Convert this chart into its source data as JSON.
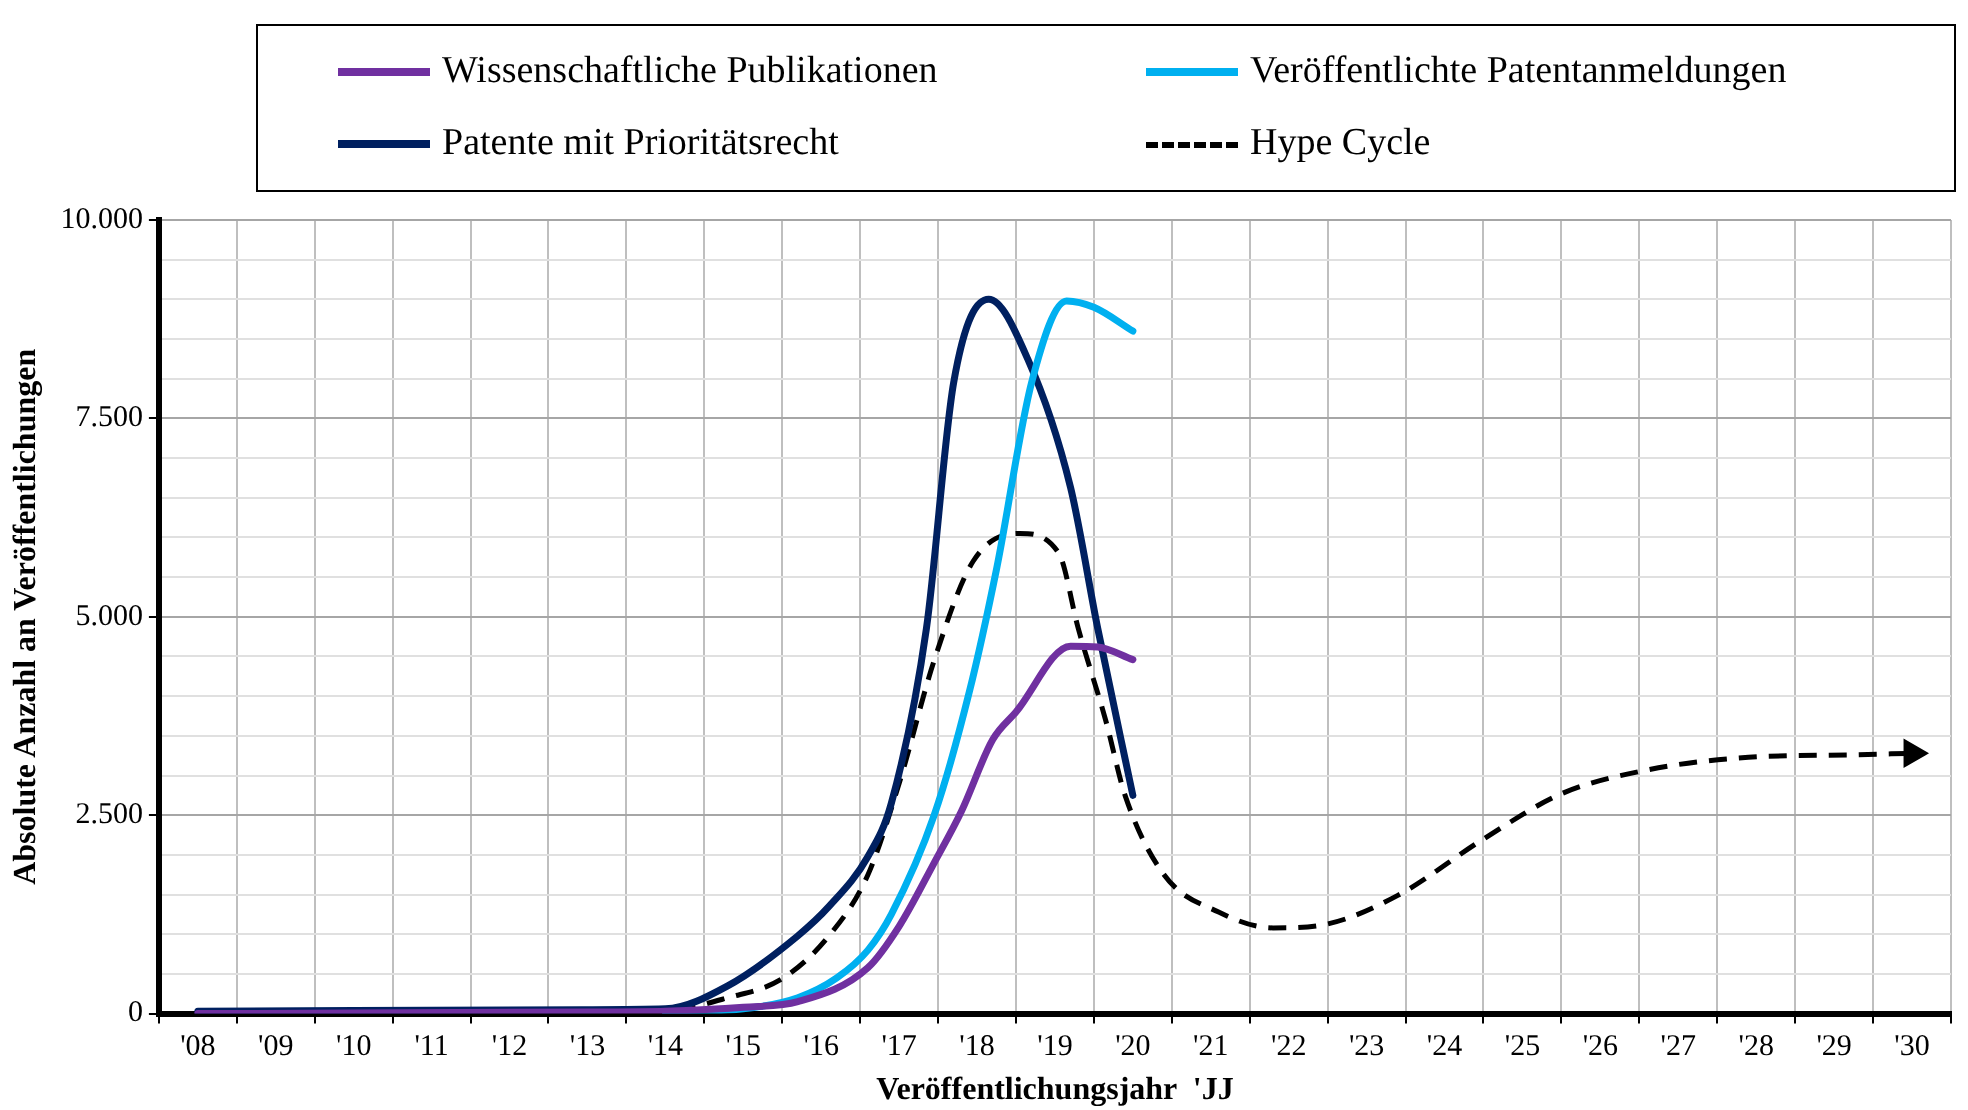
{
  "chart_data": {
    "type": "line",
    "xlabel": "Veröffentlichungsjahr  'JJ",
    "ylabel": "Absolute Anzahl an Veröffentlichungen",
    "xlim": [
      2007.5,
      2030.5
    ],
    "xticks": [
      {
        "value": 2007.5,
        "label": null
      },
      {
        "value": 2008,
        "label": "'08"
      },
      {
        "value": 2008.5,
        "label": null
      },
      {
        "value": 2009,
        "label": "'09"
      },
      {
        "value": 2009.5,
        "label": null
      },
      {
        "value": 2010,
        "label": "'10"
      },
      {
        "value": 2010.5,
        "label": null
      },
      {
        "value": 2011,
        "label": "'11"
      },
      {
        "value": 2011.5,
        "label": null
      },
      {
        "value": 2012,
        "label": "'12"
      },
      {
        "value": 2012.5,
        "label": null
      },
      {
        "value": 2013,
        "label": "'13"
      },
      {
        "value": 2013.5,
        "label": null
      },
      {
        "value": 2014,
        "label": "'14"
      },
      {
        "value": 2014.5,
        "label": null
      },
      {
        "value": 2015,
        "label": "'15"
      },
      {
        "value": 2015.5,
        "label": null
      },
      {
        "value": 2016,
        "label": "'16"
      },
      {
        "value": 2016.5,
        "label": null
      },
      {
        "value": 2017,
        "label": "'17"
      },
      {
        "value": 2017.5,
        "label": null
      },
      {
        "value": 2018,
        "label": "'18"
      },
      {
        "value": 2018.5,
        "label": null
      },
      {
        "value": 2019,
        "label": "'19"
      },
      {
        "value": 2019.5,
        "label": null
      },
      {
        "value": 2020,
        "label": "'20"
      },
      {
        "value": 2020.5,
        "label": null
      },
      {
        "value": 2021,
        "label": "'21"
      },
      {
        "value": 2021.5,
        "label": null
      },
      {
        "value": 2022,
        "label": "'22"
      },
      {
        "value": 2022.5,
        "label": null
      },
      {
        "value": 2023,
        "label": "'23"
      },
      {
        "value": 2023.5,
        "label": null
      },
      {
        "value": 2024,
        "label": "'24"
      },
      {
        "value": 2024.5,
        "label": null
      },
      {
        "value": 2025,
        "label": "'25"
      },
      {
        "value": 2025.5,
        "label": null
      },
      {
        "value": 2026,
        "label": "'26"
      },
      {
        "value": 2026.5,
        "label": null
      },
      {
        "value": 2027,
        "label": "'27"
      },
      {
        "value": 2027.5,
        "label": null
      },
      {
        "value": 2028,
        "label": "'28"
      },
      {
        "value": 2028.5,
        "label": null
      },
      {
        "value": 2029,
        "label": "'29"
      },
      {
        "value": 2029.5,
        "label": null
      },
      {
        "value": 2030,
        "label": "'30"
      },
      {
        "value": 2030.5,
        "label": null
      }
    ],
    "ylim": [
      0,
      10000
    ],
    "yticks": [
      {
        "value": 0,
        "label": "0"
      },
      {
        "value": 500,
        "label": null
      },
      {
        "value": 1000,
        "label": null
      },
      {
        "value": 1500,
        "label": null
      },
      {
        "value": 2000,
        "label": null
      },
      {
        "value": 2500,
        "label": "2.500"
      },
      {
        "value": 3000,
        "label": null
      },
      {
        "value": 3500,
        "label": null
      },
      {
        "value": 4000,
        "label": null
      },
      {
        "value": 4500,
        "label": null
      },
      {
        "value": 5000,
        "label": "5.000"
      },
      {
        "value": 5500,
        "label": null
      },
      {
        "value": 6000,
        "label": null
      },
      {
        "value": 6500,
        "label": null
      },
      {
        "value": 7000,
        "label": null
      },
      {
        "value": 7500,
        "label": "7.500"
      },
      {
        "value": 8000,
        "label": null
      },
      {
        "value": 8500,
        "label": null
      },
      {
        "value": 9000,
        "label": null
      },
      {
        "value": 9500,
        "label": null
      },
      {
        "value": 10000,
        "label": "10.000"
      }
    ],
    "grid": true,
    "legend": "top",
    "marker": "none",
    "series": [
      {
        "name": "Wissenschaftliche Publikationen",
        "color": "#7030a0",
        "x": [
          2008,
          2013,
          2014,
          2015,
          2015.7,
          2016.6,
          2017,
          2017.45,
          2017.8,
          2018.2,
          2018.5,
          2019.2,
          2019.55,
          2020
        ],
        "values": [
          0,
          20,
          30,
          80,
          150,
          580,
          1100,
          1900,
          2550,
          3450,
          3800,
          4630,
          4620,
          4460
        ]
      },
      {
        "name": "Veröffentlichte Patentanmeldungen",
        "color": "#00b0f0",
        "x": [
          2014,
          2015,
          2015.7,
          2016.2,
          2016.6,
          2016.9,
          2017.45,
          2017.9,
          2018.25,
          2018.7,
          2019.15,
          2019.5,
          2020
        ],
        "values": [
          20,
          60,
          200,
          450,
          800,
          1250,
          2500,
          4050,
          5600,
          7950,
          8980,
          8900,
          8600
        ]
      },
      {
        "name": "Patente mit  Prioritätsrecht",
        "color": "#002060",
        "x": [
          2008,
          2013,
          2014,
          2014.8,
          2015.7,
          2016.1,
          2016.6,
          2016.9,
          2017.35,
          2017.7,
          2018.15,
          2018.65,
          2019.2,
          2019.55,
          2020
        ],
        "values": [
          30,
          50,
          60,
          350,
          980,
          1350,
          1980,
          2650,
          4850,
          7950,
          9000,
          8250,
          6630,
          4850,
          2750
        ]
      },
      {
        "name": "Hype Cycle",
        "color": "#000000",
        "line_style": "dashed",
        "x": [
          2008,
          2013,
          2014,
          2014.8,
          2015.5,
          2016.1,
          2016.6,
          2017,
          2017.45,
          2017.95,
          2018.55,
          2019.05,
          2019.3,
          2019.65,
          2019.9,
          2020.4,
          2021.1,
          2021.8,
          2022.5,
          2023.4,
          2024.5,
          2025.5,
          2026.6,
          2027.9,
          2029.2,
          2030
        ],
        "values": [
          0,
          10,
          30,
          200,
          440,
          980,
          1750,
          2900,
          4450,
          5700,
          6050,
          5800,
          4850,
          3700,
          2750,
          1750,
          1280,
          1080,
          1130,
          1490,
          2200,
          2770,
          3070,
          3230,
          3260,
          3280
        ]
      }
    ]
  }
}
